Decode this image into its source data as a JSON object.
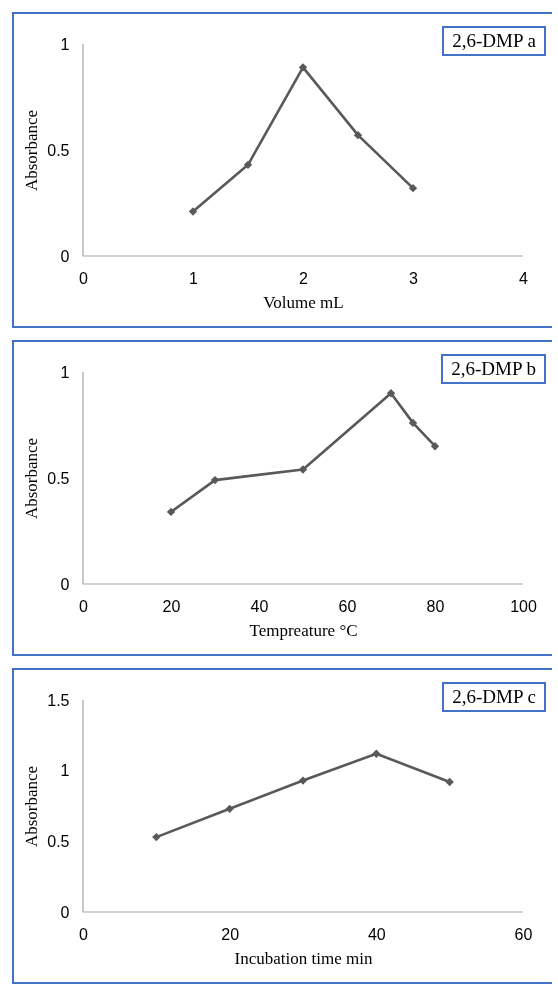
{
  "chart_data": [
    {
      "type": "line",
      "xlabel": "Volume mL",
      "ylabel": "Absorbance",
      "x": [
        1,
        1.5,
        2,
        2.5,
        3
      ],
      "series": [
        {
          "color": "#595959",
          "values": [
            0.21,
            0.43,
            0.89,
            0.57,
            0.32
          ]
        }
      ],
      "xlim": [
        0,
        4
      ],
      "xticks": [
        0,
        1,
        2,
        3,
        4
      ],
      "ylim": [
        0,
        1
      ],
      "yticks": [
        0,
        0.5,
        1
      ],
      "marker": "diamond",
      "annotations": [
        "2,6-DMP  a"
      ]
    },
    {
      "type": "line",
      "xlabel": "Tempreature °C",
      "ylabel": "Absorbance",
      "x": [
        20,
        30,
        50,
        70,
        75,
        80
      ],
      "series": [
        {
          "color": "#595959",
          "values": [
            0.34,
            0.49,
            0.54,
            0.9,
            0.76,
            0.65
          ]
        }
      ],
      "xlim": [
        0,
        100
      ],
      "xticks": [
        0,
        20,
        40,
        60,
        80,
        100
      ],
      "ylim": [
        0,
        1
      ],
      "yticks": [
        0,
        0.5,
        1
      ],
      "marker": "diamond",
      "annotations": [
        "2,6-DMP  b"
      ]
    },
    {
      "type": "line",
      "xlabel": "Incubation time min",
      "ylabel": "Absorbance",
      "x": [
        10,
        20,
        30,
        40,
        50
      ],
      "series": [
        {
          "color": "#595959",
          "values": [
            0.53,
            0.73,
            0.93,
            1.12,
            0.92
          ]
        }
      ],
      "xlim": [
        0,
        60
      ],
      "xticks": [
        0,
        20,
        40,
        60
      ],
      "ylim": [
        0,
        1.5
      ],
      "yticks": [
        0,
        0.5,
        1,
        1.5
      ],
      "marker": "diamond",
      "annotations": [
        "2,6-DMP  c"
      ]
    }
  ]
}
